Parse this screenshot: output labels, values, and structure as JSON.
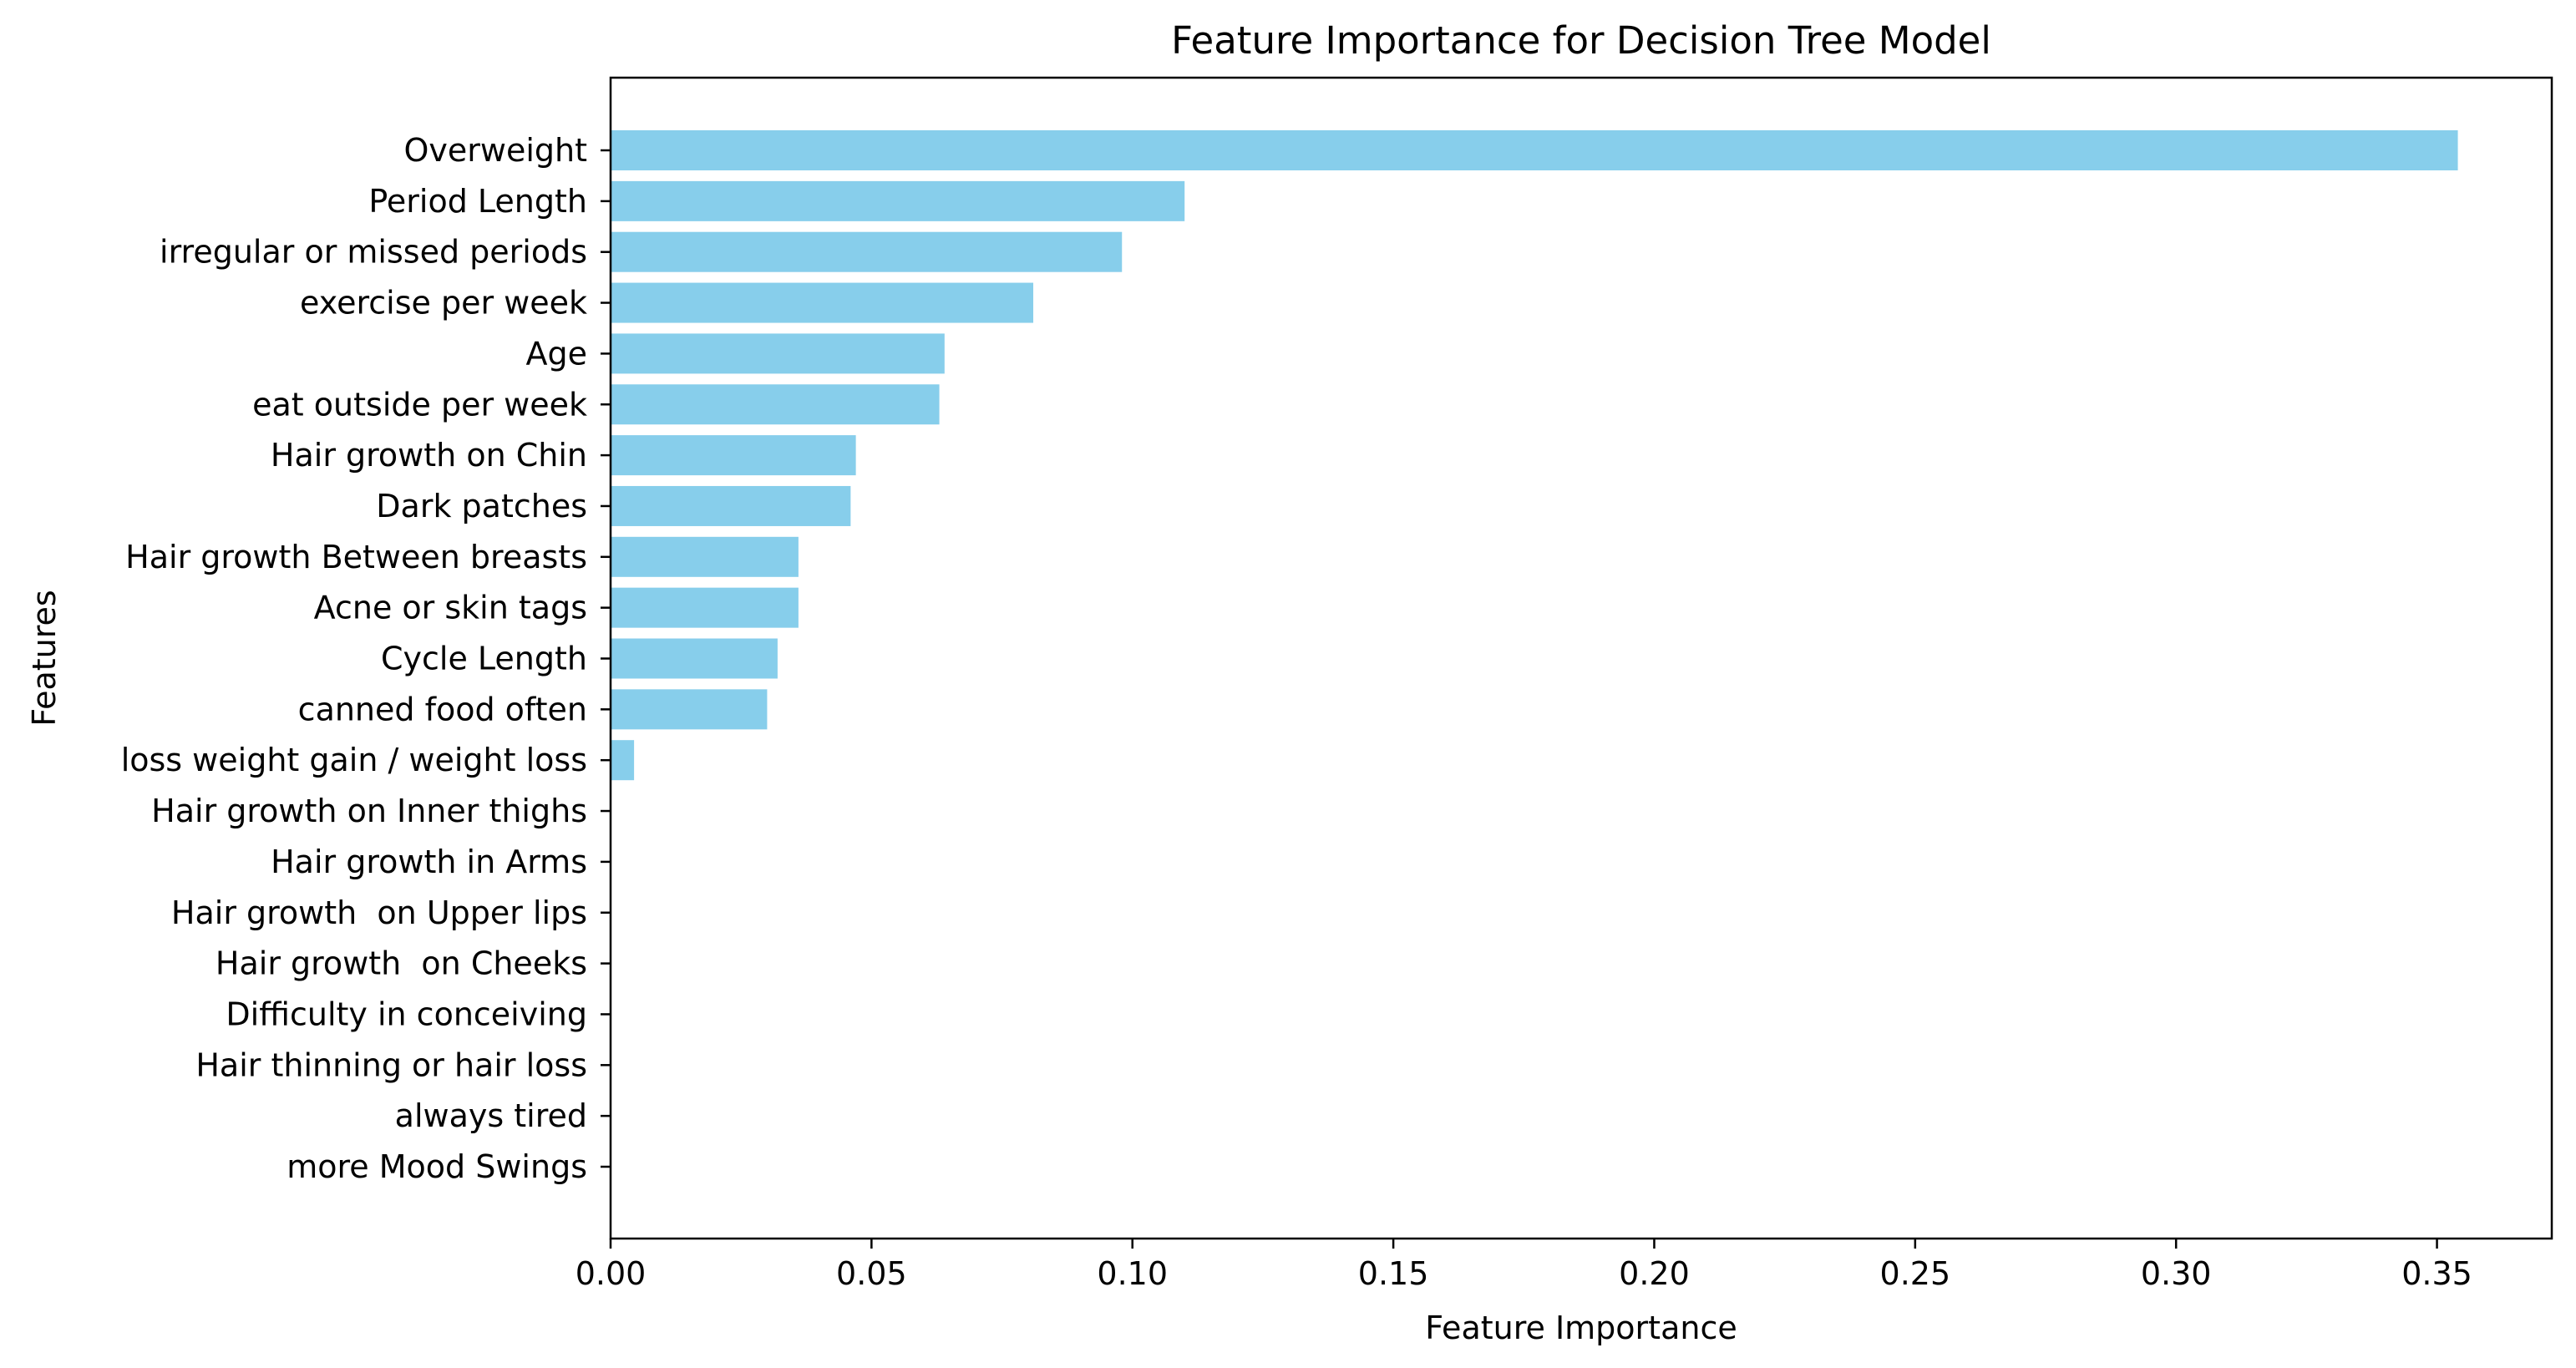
{
  "chart_data": {
    "type": "bar",
    "orientation": "horizontal",
    "title": "Feature Importance for Decision Tree Model",
    "xlabel": "Feature Importance",
    "ylabel": "Features",
    "xlim": [
      0,
      0.372
    ],
    "xticks": [
      0.0,
      0.05,
      0.1,
      0.15,
      0.2,
      0.25,
      0.3,
      0.35
    ],
    "xtick_labels": [
      "0.00",
      "0.05",
      "0.10",
      "0.15",
      "0.20",
      "0.25",
      "0.30",
      "0.35"
    ],
    "grid": false,
    "bar_color": "#87ceeb",
    "categories": [
      "Overweight",
      "Period Length",
      "irregular or missed periods",
      "exercise per week",
      "Age",
      "eat outside per week",
      "Hair growth on Chin",
      "Dark patches",
      "Hair growth Between breasts",
      "Acne or skin tags",
      "Cycle Length",
      "canned food often",
      "loss weight gain / weight loss",
      "Hair growth on Inner thighs",
      "Hair growth in Arms",
      "Hair growth  on Upper lips",
      "Hair growth  on Cheeks",
      "Difficulty in conceiving",
      "Hair thinning or hair loss",
      "always tired",
      "more Mood Swings"
    ],
    "values": [
      0.354,
      0.11,
      0.098,
      0.081,
      0.064,
      0.063,
      0.047,
      0.046,
      0.036,
      0.036,
      0.032,
      0.03,
      0.0045,
      0,
      0,
      0,
      0,
      0,
      0,
      0,
      0
    ]
  }
}
